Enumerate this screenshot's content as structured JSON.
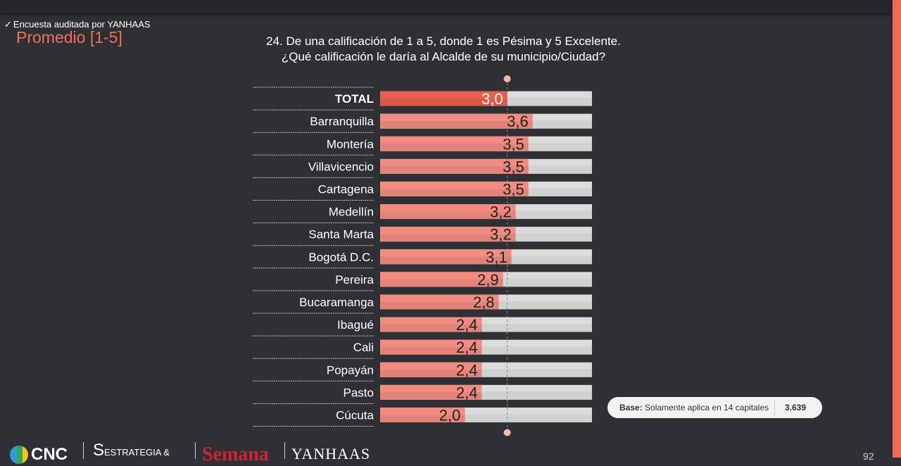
{
  "header": {
    "audit_note": "Encuesta auditada por YANHAAS",
    "check_symbol": "✓",
    "section_title": "Promedio [1-5]",
    "question_line1": "24. De una calificación de 1 a 5, donde 1 es Pésima y 5 Excelente.",
    "question_line2": "¿Qué calificación le daría al Alcalde de su municipio/Ciudad?"
  },
  "chart_data": {
    "type": "bar",
    "orientation": "horizontal",
    "xlim": [
      0,
      5
    ],
    "reference_line": 3.0,
    "categories": [
      "TOTAL",
      "Barranquilla",
      "Montería",
      "Villavicencio",
      "Cartagena",
      "Medellín",
      "Santa Marta",
      "Bogotá D.C.",
      "Pereira",
      "Bucaramanga",
      "Ibagué",
      "Cali",
      "Popayán",
      "Pasto",
      "Cúcuta"
    ],
    "values": [
      3.0,
      3.6,
      3.5,
      3.5,
      3.5,
      3.2,
      3.2,
      3.1,
      2.9,
      2.8,
      2.4,
      2.4,
      2.4,
      2.4,
      2.0
    ],
    "value_labels": [
      "3,0",
      "3,6",
      "3,5",
      "3,5",
      "3,5",
      "3,2",
      "3,2",
      "3,1",
      "2,9",
      "2,8",
      "2,4",
      "2,4",
      "2,4",
      "2,4",
      "2,0"
    ],
    "colors": {
      "total_bar": "#e8604c",
      "bar": "#f28b80",
      "background_bar": "#dcdcdc",
      "reference_marker": "#f6b8a9"
    }
  },
  "base": {
    "label": "Base:",
    "text": "Solamente aplica en 14 capitales",
    "value": "3.639"
  },
  "footer": {
    "logo_cnc": "CNC",
    "logo_estrategia": "ESTRATEGIA &",
    "logo_semana": "Semana",
    "logo_yanhaas": "YANHAAS",
    "page_number": "92"
  }
}
